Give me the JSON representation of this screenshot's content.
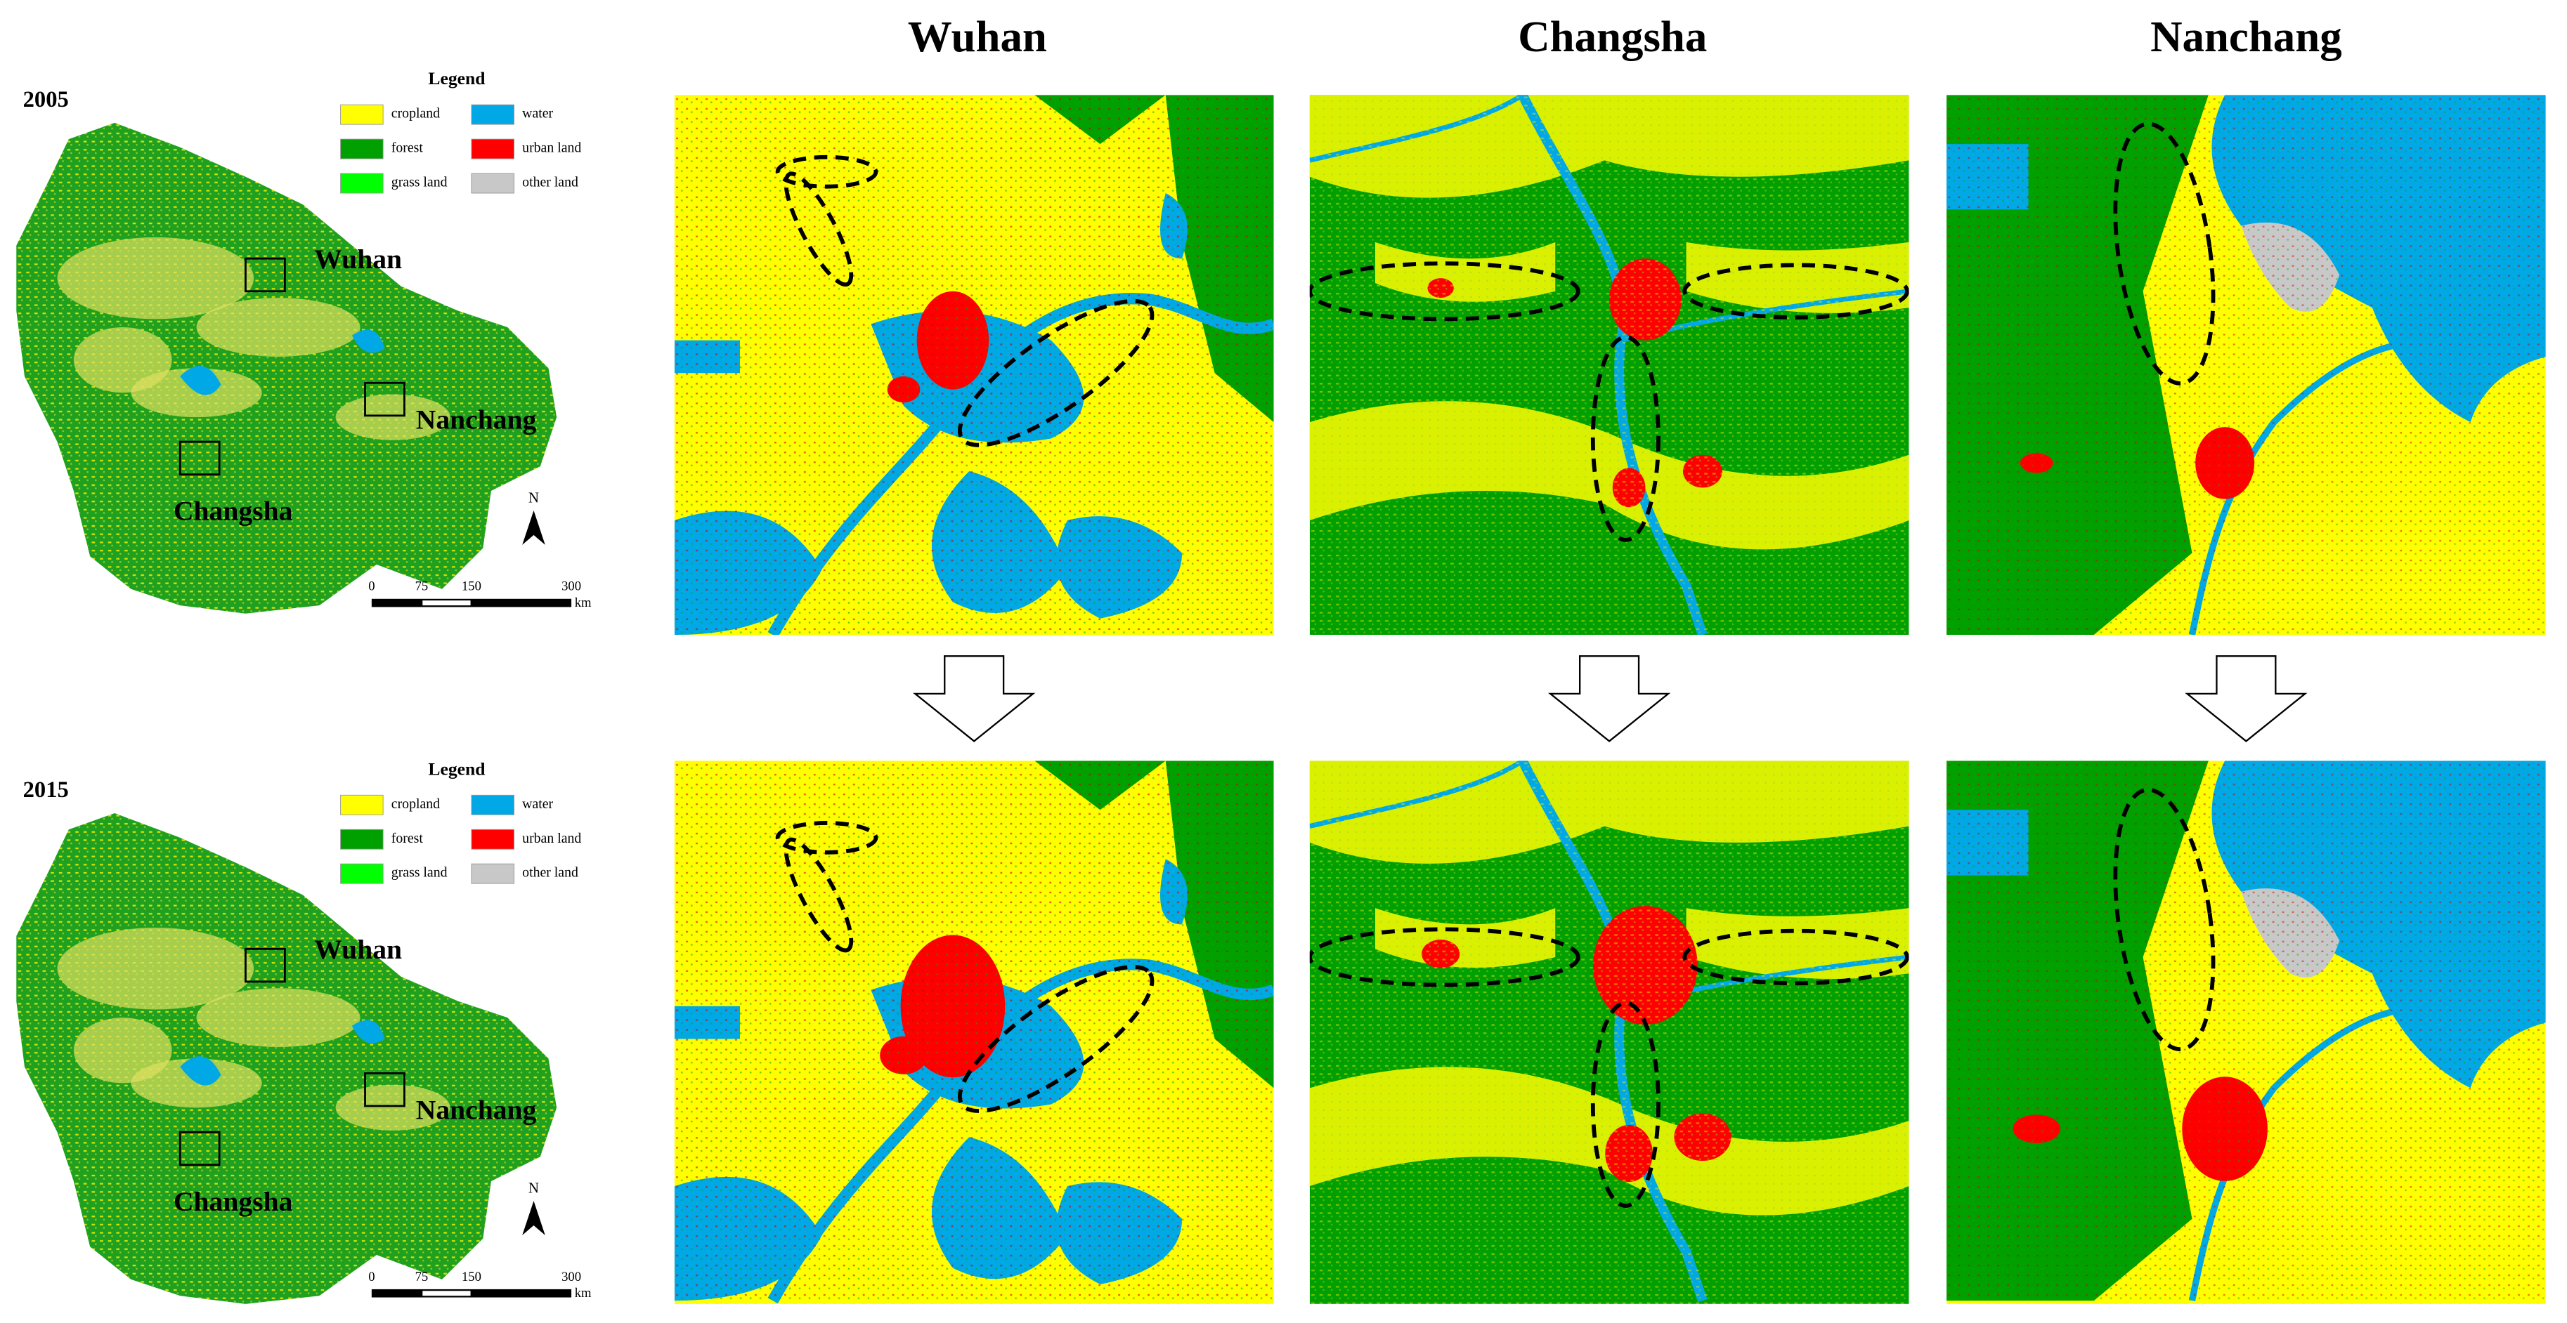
{
  "columns": [
    "Wuhan",
    "Changsha",
    "Nanchang"
  ],
  "overviews": [
    {
      "year": "2005",
      "legend_title": "Legend",
      "legend": [
        "cropland",
        "water",
        "forest",
        "urban land",
        "grass land",
        "other land"
      ],
      "cities": [
        "Wuhan",
        "Nanchang",
        "Changsha"
      ],
      "north": "N",
      "scale": [
        0,
        75,
        150,
        300
      ],
      "unit": "km"
    },
    {
      "year": "2015",
      "legend_title": "Legend",
      "legend": [
        "cropland",
        "water",
        "forest",
        "urban land",
        "grass land",
        "other land"
      ],
      "cities": [
        "Wuhan",
        "Nanchang",
        "Changsha"
      ],
      "north": "N",
      "scale": [
        0,
        75,
        150,
        300
      ],
      "unit": "km"
    }
  ]
}
